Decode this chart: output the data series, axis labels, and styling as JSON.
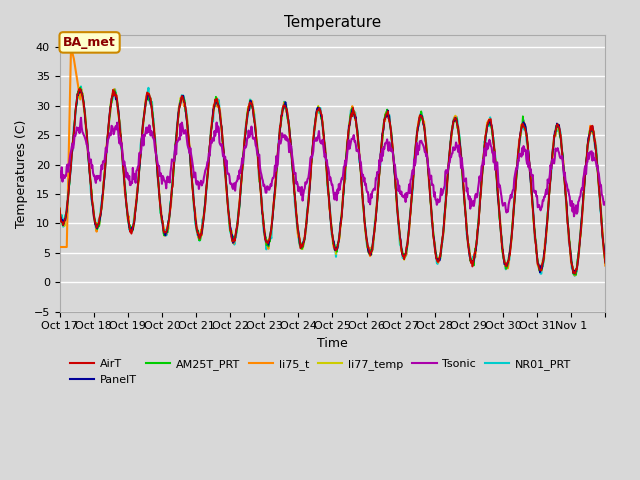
{
  "title": "Temperature",
  "xlabel": "Time",
  "ylabel": "Temperatures (C)",
  "ylim": [
    -5,
    42
  ],
  "yticks": [
    -5,
    0,
    5,
    10,
    15,
    20,
    25,
    30,
    35,
    40
  ],
  "background_color": "#d8d8d8",
  "annotation_text": "BA_met",
  "series": {
    "AirT": {
      "color": "#cc0000",
      "lw": 1.2,
      "zorder": 5
    },
    "PanelT": {
      "color": "#000099",
      "lw": 1.2,
      "zorder": 5
    },
    "AM25T_PRT": {
      "color": "#00cc00",
      "lw": 1.2,
      "zorder": 5
    },
    "li75_t": {
      "color": "#ff8800",
      "lw": 1.5,
      "zorder": 4
    },
    "li77_temp": {
      "color": "#cccc00",
      "lw": 1.2,
      "zorder": 4
    },
    "Tsonic": {
      "color": "#aa00aa",
      "lw": 1.5,
      "zorder": 6
    },
    "NR01_PRT": {
      "color": "#00cccc",
      "lw": 1.5,
      "zorder": 3
    }
  },
  "xtick_labels": [
    "Oct 17",
    "Oct 18",
    "Oct 19",
    "Oct 20",
    "Oct 21",
    "Oct 22",
    "Oct 23",
    "Oct 24",
    "Oct 25",
    "Oct 26",
    "Oct 27",
    "Oct 28",
    "Oct 29",
    "Oct 30",
    "Oct 31",
    "Nov 1",
    ""
  ],
  "n_days": 16
}
